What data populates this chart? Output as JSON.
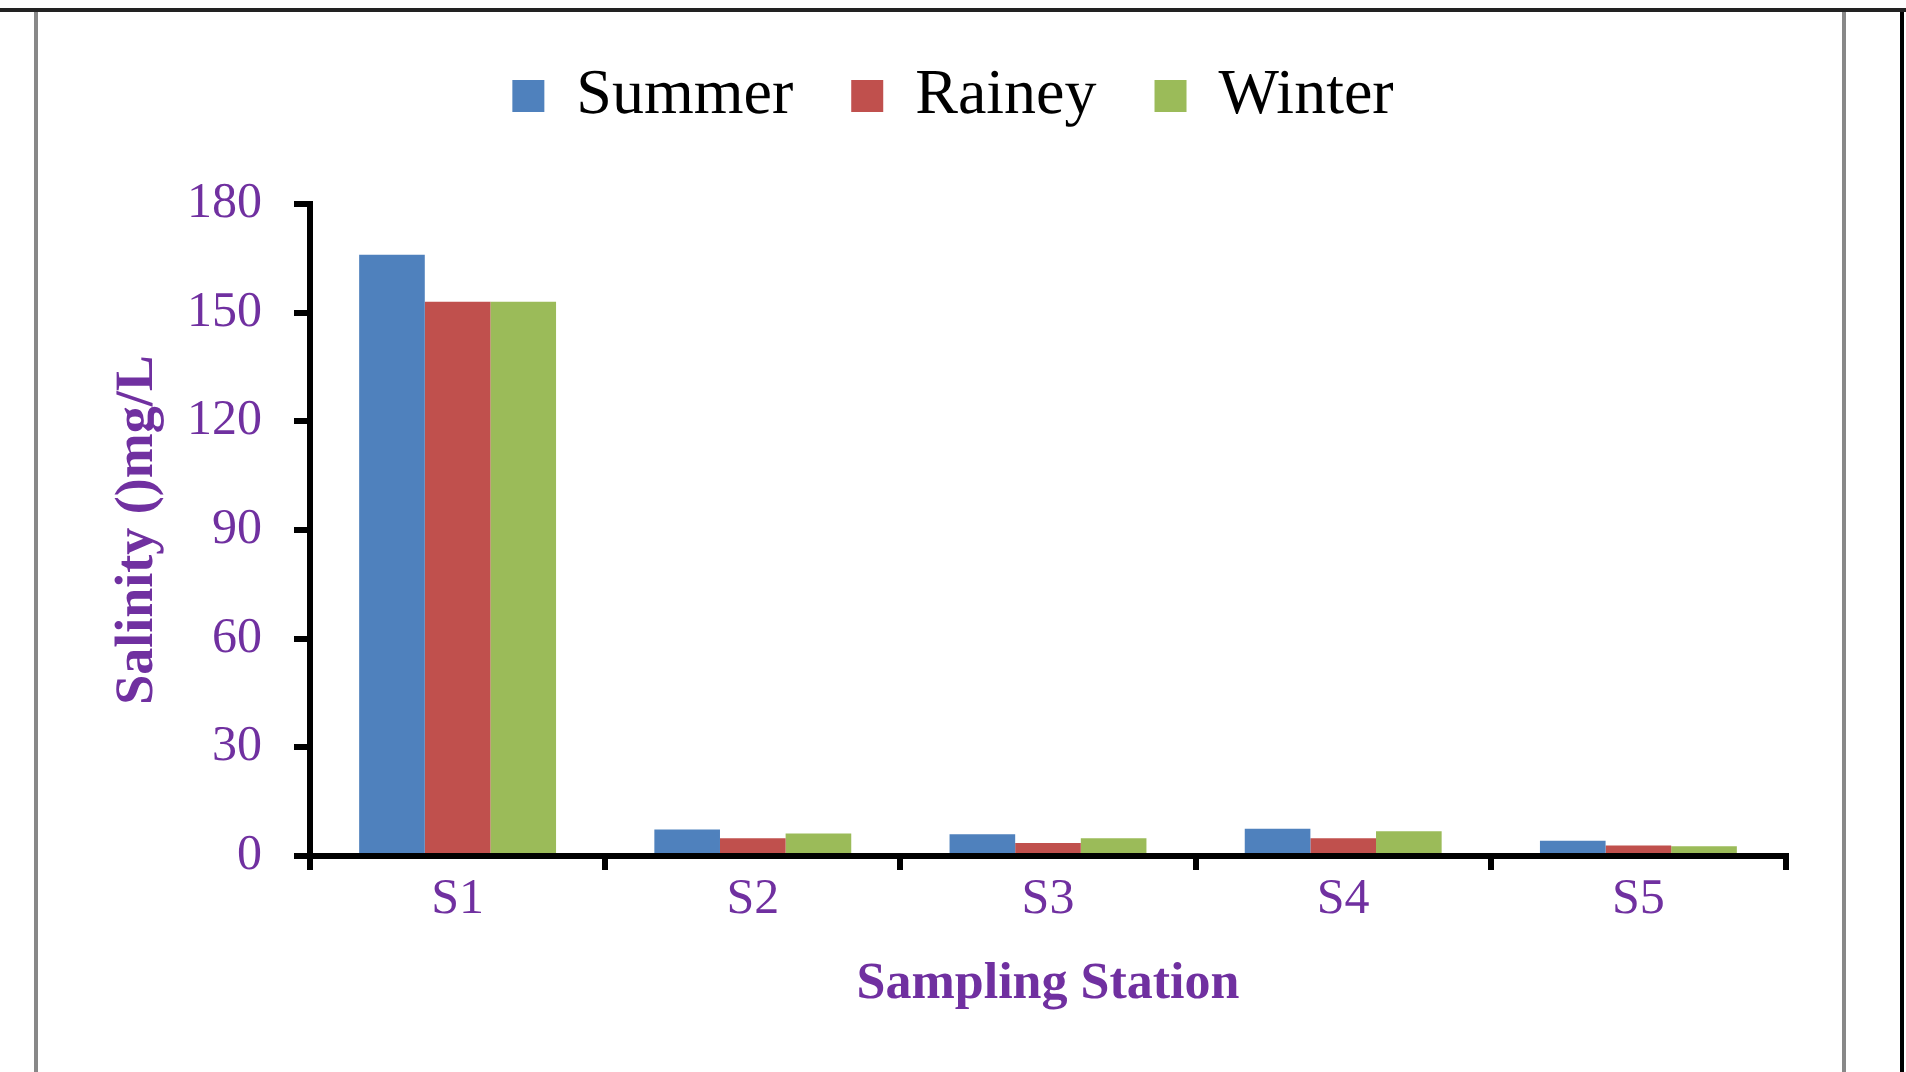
{
  "chart_data": {
    "type": "bar",
    "xlabel": "Sampling Station",
    "ylabel": "Salinity ()mg/L",
    "categories": [
      "S1",
      "S2",
      "S3",
      "S4",
      "S5"
    ],
    "series": [
      {
        "name": "Summer",
        "color": "#4f81bd",
        "values": [
          166,
          7.3,
          6,
          7.5,
          4.2
        ]
      },
      {
        "name": "Rainey",
        "color": "#c0504d",
        "values": [
          153,
          4.9,
          3.6,
          4.9,
          2.9
        ]
      },
      {
        "name": "Winter",
        "color": "#9bbb59",
        "values": [
          153,
          6.2,
          4.9,
          6.8,
          2.7
        ]
      }
    ],
    "ylim": [
      0,
      180
    ],
    "yticks": [
      0,
      30,
      60,
      90,
      120,
      150,
      180
    ],
    "grid": false,
    "legend": "top"
  }
}
